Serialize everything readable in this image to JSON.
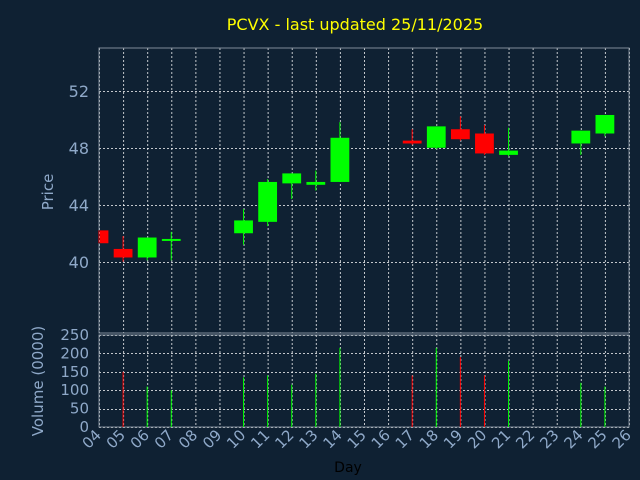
{
  "chart_data": {
    "type": "candlestick",
    "title": "PCVX - last updated 25/11/2025",
    "xlabel": "Day",
    "ylabel_price": "Price",
    "ylabel_volume": "Volume (0000)",
    "x_ticks": [
      "04",
      "05",
      "06",
      "07",
      "08",
      "09",
      "10",
      "11",
      "12",
      "13",
      "14",
      "15",
      "16",
      "17",
      "18",
      "19",
      "20",
      "21",
      "22",
      "23",
      "24",
      "25",
      "26"
    ],
    "price_ylim": [
      35,
      55
    ],
    "price_ticks": [
      40,
      44,
      48,
      52
    ],
    "volume_ylim": [
      0,
      250
    ],
    "volume_ticks": [
      0,
      50,
      100,
      150,
      200,
      250
    ],
    "grid": true,
    "colors": {
      "up": "#00ff00",
      "down": "#ff0000",
      "title": "#ffff00",
      "axis_text": "#8fa9c9",
      "grid": "#ffffff",
      "background": "#0f2133",
      "frame": "#7f8c99"
    },
    "candles": [
      {
        "day": "04",
        "open": 42.2,
        "high": 42.2,
        "low": 41.3,
        "close": 41.3,
        "volume": 0
      },
      {
        "day": "05",
        "open": 40.9,
        "high": 41.8,
        "low": 40.0,
        "close": 40.3,
        "volume": 150
      },
      {
        "day": "06",
        "open": 40.3,
        "high": 41.7,
        "low": 40.1,
        "close": 41.7,
        "volume": 110
      },
      {
        "day": "07",
        "open": 41.5,
        "high": 42.1,
        "low": 40.1,
        "close": 41.6,
        "volume": 100
      },
      {
        "day": "10",
        "open": 42.0,
        "high": 43.7,
        "low": 41.2,
        "close": 42.9,
        "volume": 135
      },
      {
        "day": "11",
        "open": 42.8,
        "high": 45.8,
        "low": 42.5,
        "close": 45.6,
        "volume": 140
      },
      {
        "day": "12",
        "open": 45.5,
        "high": 46.2,
        "low": 44.4,
        "close": 46.2,
        "volume": 115
      },
      {
        "day": "13",
        "open": 45.4,
        "high": 46.4,
        "low": 45.0,
        "close": 45.6,
        "volume": 145
      },
      {
        "day": "14",
        "open": 45.6,
        "high": 49.8,
        "low": 45.6,
        "close": 48.7,
        "volume": 215
      },
      {
        "day": "17",
        "open": 48.5,
        "high": 49.3,
        "low": 48.2,
        "close": 48.3,
        "volume": 140
      },
      {
        "day": "18",
        "open": 48.0,
        "high": 49.5,
        "low": 47.9,
        "close": 49.5,
        "volume": 215
      },
      {
        "day": "19",
        "open": 49.3,
        "high": 50.2,
        "low": 48.5,
        "close": 48.6,
        "volume": 190
      },
      {
        "day": "20",
        "open": 49.0,
        "high": 49.6,
        "low": 47.5,
        "close": 47.6,
        "volume": 140
      },
      {
        "day": "21",
        "open": 47.5,
        "high": 49.4,
        "low": 47.4,
        "close": 47.8,
        "volume": 180
      },
      {
        "day": "24",
        "open": 48.3,
        "high": 49.2,
        "low": 47.5,
        "close": 49.2,
        "volume": 120
      },
      {
        "day": "25",
        "open": 49.0,
        "high": 50.3,
        "low": 48.8,
        "close": 50.3,
        "volume": 110
      }
    ]
  }
}
